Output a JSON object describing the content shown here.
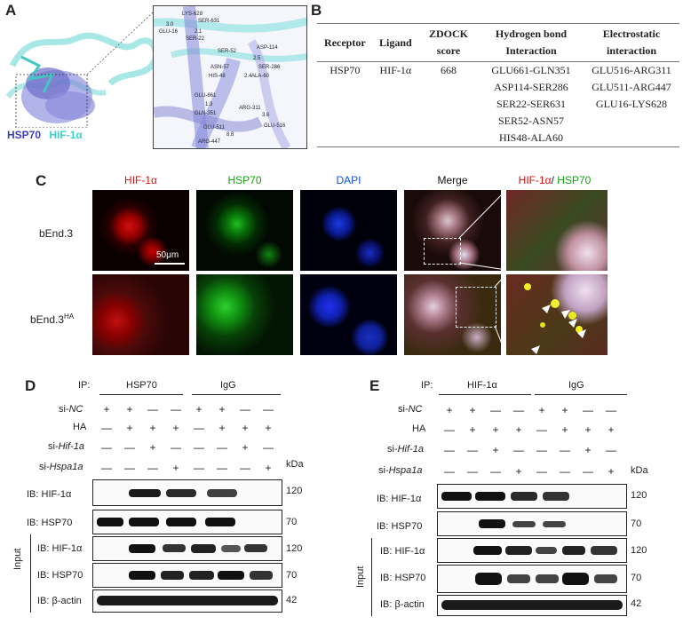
{
  "panel_a": {
    "letter": "A",
    "legend_hsp70": "HSP70",
    "legend_hif": "HIF-1α",
    "residue_labels": [
      "LYS-628",
      "SER-631",
      "GLU-16",
      "SER-22",
      "3.0",
      "2.1",
      "SER-52",
      "ASN-57",
      "HIS-48",
      "ALA-60",
      "SER-286",
      "ASP-114",
      "2.5",
      "2.4",
      "GLU-661",
      "GLN-351",
      "1.3",
      "ARG-311",
      "3.6",
      "GLU-516",
      "GLU-511",
      "ARG-447",
      "8.8"
    ]
  },
  "panel_b": {
    "letter": "B",
    "headers": [
      "Receptor",
      "Ligand",
      "ZDOCK score",
      "Hydrogen bond Interaction",
      "Electrostatic interaction"
    ],
    "receptor": "HSP70",
    "ligand": "HIF-1α",
    "score": "668",
    "hbonds": [
      "GLU661-GLN351",
      "ASP114-SER286",
      "SER22-SER631",
      "SER52-ASN57",
      "HIS48-ALA60"
    ],
    "electrostatic": [
      "GLU516-ARG311",
      "GLU511-ARG447",
      "GLU16-LYS628"
    ]
  },
  "panel_c": {
    "letter": "C",
    "col_titles": [
      "HIF-1α",
      "HSP70",
      "DAPI",
      "Merge"
    ],
    "merged_title_red": "HIF-1α",
    "merged_title_sep": "/ ",
    "merged_title_green": "HSP70",
    "row1": "bEnd.3",
    "row2_base": "bEnd.3",
    "row2_sup": "HA",
    "scale_bar": "50μm",
    "colors": {
      "red": "#e01010",
      "green": "#10b010",
      "blue": "#1040e0"
    }
  },
  "panel_d": {
    "letter": "D",
    "ip_label": "IP:",
    "ip_groups": [
      "HSP70",
      "IgG"
    ],
    "row_labels": [
      "si-NC",
      "HA",
      "si-Hif-1a",
      "si-Hspa1a"
    ],
    "row_prefixes": [
      "si-",
      "HA",
      "si-",
      "si-"
    ],
    "row_italics": [
      "NC",
      "",
      "Hif-1a",
      "Hspa1a"
    ],
    "signs": [
      [
        "+",
        "+",
        "—",
        "—",
        "+",
        "+",
        "—",
        "—"
      ],
      [
        "—",
        "+",
        "+",
        "+",
        "—",
        "+",
        "+",
        "+"
      ],
      [
        "—",
        "—",
        "+",
        "—",
        "—",
        "—",
        "+",
        "—"
      ],
      [
        "—",
        "—",
        "—",
        "+",
        "—",
        "—",
        "—",
        "+"
      ]
    ],
    "kda": "kDa",
    "input_label": "Input",
    "blots": [
      "IB: HIF-1α",
      "IB: HSP70",
      "IB: HIF-1α",
      "IB: HSP70",
      "IB: β-actin"
    ],
    "mw": [
      "120",
      "70",
      "120",
      "70",
      "42"
    ]
  },
  "panel_e": {
    "letter": "E",
    "ip_label": "IP:",
    "ip_groups": [
      "HIF-1α",
      "IgG"
    ],
    "row_prefixes": [
      "si-",
      "HA",
      "si-",
      "si-"
    ],
    "row_italics": [
      "NC",
      "",
      "Hif-1a",
      "Hspa1a"
    ],
    "signs": [
      [
        "+",
        "+",
        "—",
        "—",
        "+",
        "+",
        "—",
        "—"
      ],
      [
        "—",
        "+",
        "+",
        "+",
        "—",
        "+",
        "+",
        "+"
      ],
      [
        "—",
        "—",
        "+",
        "—",
        "—",
        "—",
        "+",
        "—"
      ],
      [
        "—",
        "—",
        "—",
        "+",
        "—",
        "—",
        "—",
        "+"
      ]
    ],
    "kda": "kDa",
    "input_label": "Input",
    "blots": [
      "IB: HIF-1α",
      "IB: HSP70",
      "IB: HIF-1α",
      "IB: HSP70",
      "IB: β-actin"
    ],
    "mw": [
      "120",
      "70",
      "120",
      "70",
      "42"
    ]
  }
}
